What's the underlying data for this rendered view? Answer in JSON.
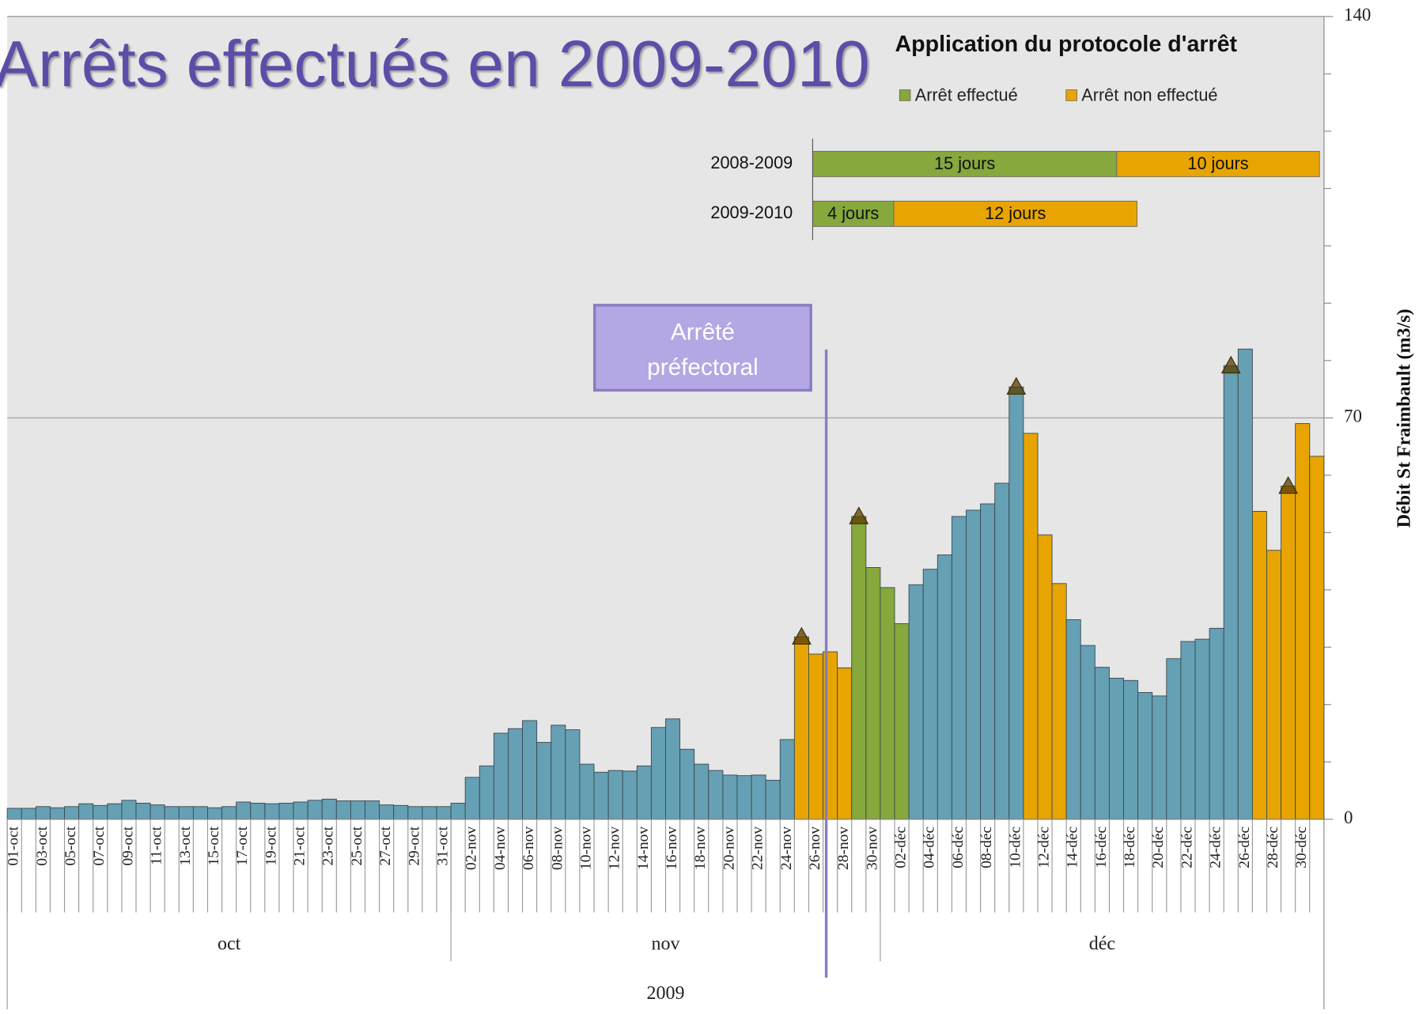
{
  "title": "Arrêts effectués en 2009-2010",
  "chart_data": [
    {
      "type": "bar",
      "y_label": "Débit St Fraimbault (m3/s)",
      "annotation": "Arrêté préfectoral",
      "x_groups": [
        "oct",
        "nov",
        "déc"
      ],
      "x_super_group": "2009",
      "categories": [
        "01-oct",
        null,
        "03-oct",
        null,
        "05-oct",
        null,
        "07-oct",
        null,
        "09-oct",
        null,
        "11-oct",
        null,
        "13-oct",
        null,
        "15-oct",
        null,
        "17-oct",
        null,
        "19-oct",
        null,
        "21-oct",
        null,
        "23-oct",
        null,
        "25-oct",
        null,
        "27-oct",
        null,
        "29-oct",
        null,
        "31-oct",
        null,
        "02-nov",
        null,
        "04-nov",
        null,
        "06-nov",
        null,
        "08-nov",
        null,
        "10-nov",
        null,
        "12-nov",
        null,
        "14-nov",
        null,
        "16-nov",
        null,
        "18-nov",
        null,
        "20-nov",
        null,
        "22-nov",
        null,
        "24-nov",
        null,
        "26-nov",
        null,
        "28-nov",
        null,
        "30-nov",
        null,
        "02-déc",
        null,
        "04-déc",
        null,
        "06-déc",
        null,
        "08-déc",
        null,
        "10-déc",
        null,
        "12-déc",
        null,
        "14-déc",
        null,
        "16-déc",
        null,
        "18-déc",
        null,
        "20-déc",
        null,
        "22-déc",
        null,
        "24-déc",
        null,
        "26-déc",
        null,
        "28-déc",
        null,
        "30-déc",
        null
      ],
      "values": [
        1.9,
        1.9,
        2.2,
        2.0,
        2.2,
        2.7,
        2.4,
        2.7,
        3.3,
        2.8,
        2.5,
        2.2,
        2.2,
        2.2,
        2.0,
        2.2,
        3.0,
        2.8,
        2.7,
        2.8,
        3.0,
        3.3,
        3.5,
        3.2,
        3.2,
        3.2,
        2.5,
        2.4,
        2.2,
        2.2,
        2.2,
        2.8,
        7.3,
        9.3,
        15,
        15.8,
        17.2,
        13.4,
        16.4,
        15.6,
        9.6,
        8.2,
        8.5,
        8.4,
        9.3,
        16,
        17.5,
        12.2,
        9.6,
        8.5,
        7.7,
        7.6,
        7.7,
        6.8,
        13.9,
        31.8,
        28.8,
        29.2,
        26.4,
        52.8,
        43.9,
        40.4,
        34.1,
        40.9,
        43.6,
        46.1,
        52.8,
        53.9,
        55,
        58.6,
        75.4,
        67.3,
        49.6,
        41.1,
        34.8,
        30.3,
        26.5,
        24.6,
        24.2,
        22.1,
        21.5,
        28,
        31,
        31.4,
        33.3,
        79.1,
        82,
        53.7,
        46.9,
        58.1,
        69,
        63.3
      ],
      "colors": [
        "#65a0b4",
        "#65a0b4",
        "#65a0b4",
        "#65a0b4",
        "#65a0b4",
        "#65a0b4",
        "#65a0b4",
        "#65a0b4",
        "#65a0b4",
        "#65a0b4",
        "#65a0b4",
        "#65a0b4",
        "#65a0b4",
        "#65a0b4",
        "#65a0b4",
        "#65a0b4",
        "#65a0b4",
        "#65a0b4",
        "#65a0b4",
        "#65a0b4",
        "#65a0b4",
        "#65a0b4",
        "#65a0b4",
        "#65a0b4",
        "#65a0b4",
        "#65a0b4",
        "#65a0b4",
        "#65a0b4",
        "#65a0b4",
        "#65a0b4",
        "#65a0b4",
        "#65a0b4",
        "#65a0b4",
        "#65a0b4",
        "#65a0b4",
        "#65a0b4",
        "#65a0b4",
        "#65a0b4",
        "#65a0b4",
        "#65a0b4",
        "#65a0b4",
        "#65a0b4",
        "#65a0b4",
        "#65a0b4",
        "#65a0b4",
        "#65a0b4",
        "#65a0b4",
        "#65a0b4",
        "#65a0b4",
        "#65a0b4",
        "#65a0b4",
        "#65a0b4",
        "#65a0b4",
        "#65a0b4",
        "#65a0b4",
        "#e8a400",
        "#e8a400",
        "#e8a400",
        "#e8a400",
        "#86a83c",
        "#86a83c",
        "#86a83c",
        "#86a83c",
        "#65a0b4",
        "#65a0b4",
        "#65a0b4",
        "#65a0b4",
        "#65a0b4",
        "#65a0b4",
        "#65a0b4",
        "#65a0b4",
        "#e8a400",
        "#e8a400",
        "#e8a400",
        "#65a0b4",
        "#65a0b4",
        "#65a0b4",
        "#65a0b4",
        "#65a0b4",
        "#65a0b4",
        "#65a0b4",
        "#65a0b4",
        "#65a0b4",
        "#65a0b4",
        "#65a0b4",
        "#65a0b4",
        "#65a0b4",
        "#e8a400",
        "#e8a400",
        "#e8a400",
        "#e8a400",
        "#e8a400"
      ],
      "triangle_markers": [
        55,
        59,
        70,
        85,
        89
      ],
      "ylim": [
        0,
        140
      ],
      "yticks": [
        0,
        70,
        140
      ],
      "minor_yticks": [
        10,
        20,
        30,
        40,
        50,
        60,
        80,
        90,
        100,
        110,
        120,
        130
      ],
      "grid": true
    },
    {
      "type": "stacked_barh",
      "title": "Application du protocole d'arrêt",
      "categories": [
        "2008-2009",
        "2009-2010"
      ],
      "series": [
        {
          "name": "Arrêt effectué",
          "color": "#86a83c",
          "values": [
            15,
            4
          ],
          "value_labels": [
            "15 jours",
            "4 jours"
          ]
        },
        {
          "name": "Arrêt non effectué",
          "color": "#e8a400",
          "values": [
            10,
            12
          ],
          "value_labels": [
            "10 jours",
            "12 jours"
          ]
        }
      ]
    }
  ]
}
